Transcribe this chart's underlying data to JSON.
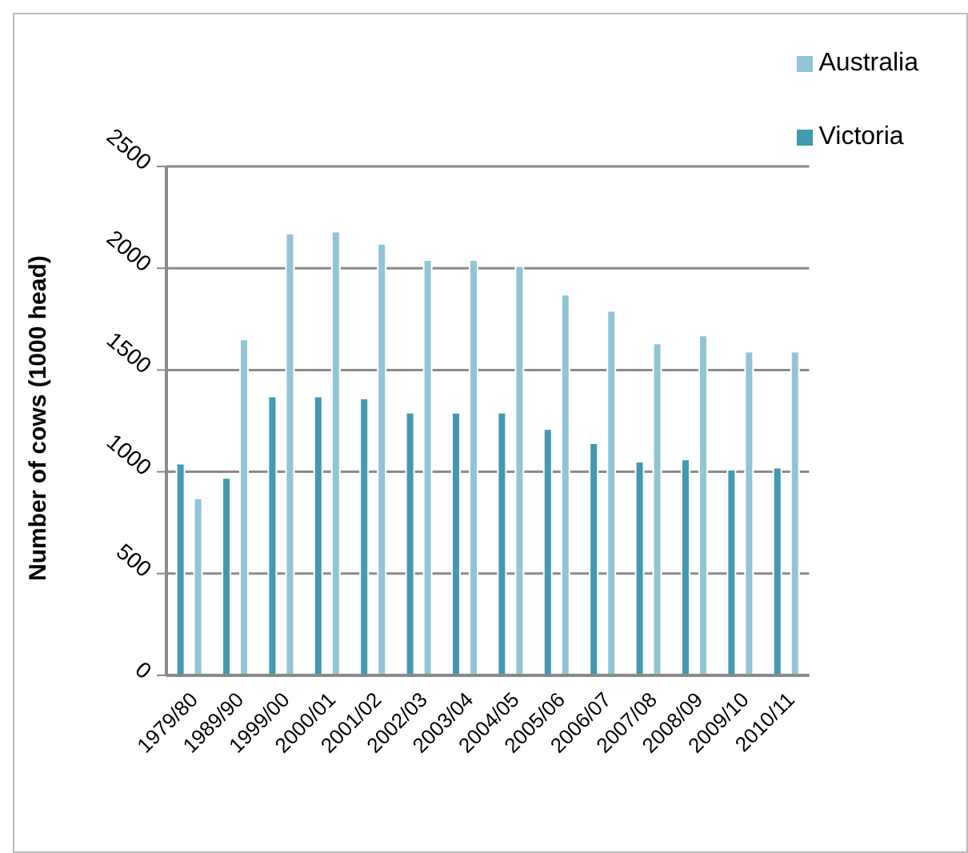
{
  "chart_data": {
    "type": "bar",
    "ylabel": "Number of cows (1000 head)",
    "categories": [
      "1979/80",
      "1989/90",
      "1999/00",
      "2000/01",
      "2001/02",
      "2002/03",
      "2003/04",
      "2004/05",
      "2005/06",
      "2006/07",
      "2007/08",
      "2008/09",
      "2009/10",
      "2010/11"
    ],
    "series": [
      {
        "name": "Victoria",
        "color": "#4299b0",
        "values": [
          1040,
          970,
          1370,
          1370,
          1360,
          1290,
          1290,
          1290,
          1210,
          1140,
          1050,
          1060,
          1010,
          1020
        ]
      },
      {
        "name": "Australia",
        "color": "#93c4d6",
        "values": [
          870,
          1650,
          2170,
          2180,
          2120,
          2040,
          2040,
          2010,
          1870,
          1790,
          1630,
          1670,
          1590,
          1590
        ]
      }
    ],
    "ylim": [
      0,
      2500
    ],
    "yticks": [
      0,
      500,
      1000,
      1500,
      2000,
      2500
    ],
    "grid": "y",
    "legend": "top right"
  }
}
